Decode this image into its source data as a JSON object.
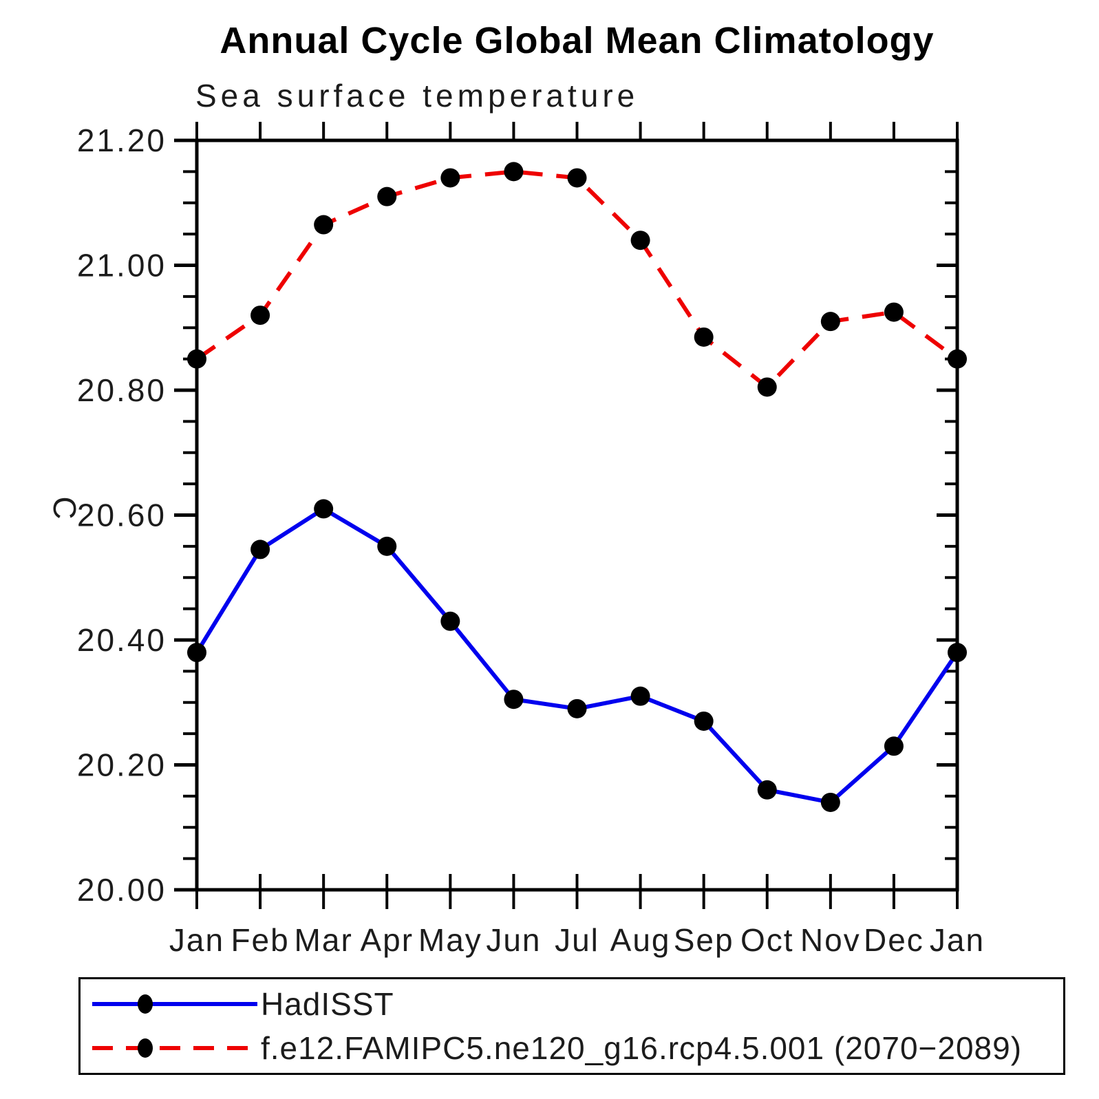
{
  "title": "Annual Cycle Global Mean Climatology",
  "subtitle": "Sea surface temperature",
  "chart_data": {
    "type": "line",
    "title": "Annual Cycle Global Mean Climatology",
    "subtitle": "Sea surface temperature",
    "ylabel": "C",
    "xlabel": "",
    "grid": false,
    "legend_position": "bottom-left-box",
    "ylim": [
      20.0,
      21.2
    ],
    "y_major_tick_step": 0.2,
    "y_minor_tick_step": 0.05,
    "y_tick_labels": [
      "21.20",
      "21.00",
      "20.80",
      "20.60",
      "20.40",
      "20.20",
      "20.00"
    ],
    "y_tick_values": [
      21.2,
      21.0,
      20.8,
      20.6,
      20.4,
      20.2,
      20.0
    ],
    "x_tick_labels": [
      "Jan",
      "Feb",
      "Mar",
      "Apr",
      "May",
      "Jun",
      "Jul",
      "Aug",
      "Sep",
      "Oct",
      "Nov",
      "Dec",
      "Jan"
    ],
    "series": [
      {
        "name": "HadISST",
        "line_style": "solid",
        "line_color": "#0000ee",
        "marker": "filled-circle",
        "marker_color": "#000000",
        "values": [
          20.38,
          20.545,
          20.61,
          20.55,
          20.43,
          20.305,
          20.29,
          20.31,
          20.27,
          20.16,
          20.14,
          20.23,
          20.38
        ]
      },
      {
        "name": "f.e12.FAMIPC5.ne120_g16.rcp4.5.001 (2070−2089)",
        "line_style": "dashed",
        "line_color": "#ee0000",
        "marker": "filled-circle",
        "marker_color": "#000000",
        "values": [
          20.85,
          20.92,
          21.065,
          21.11,
          21.14,
          21.15,
          21.14,
          21.04,
          20.885,
          20.805,
          20.91,
          20.925,
          20.85
        ]
      }
    ]
  },
  "colors": {
    "background": "#ffffff",
    "axis": "#000000",
    "text": "#1c1c1c",
    "hadisst_line": "#0000ee",
    "model_line": "#ee0000",
    "marker": "#000000"
  }
}
